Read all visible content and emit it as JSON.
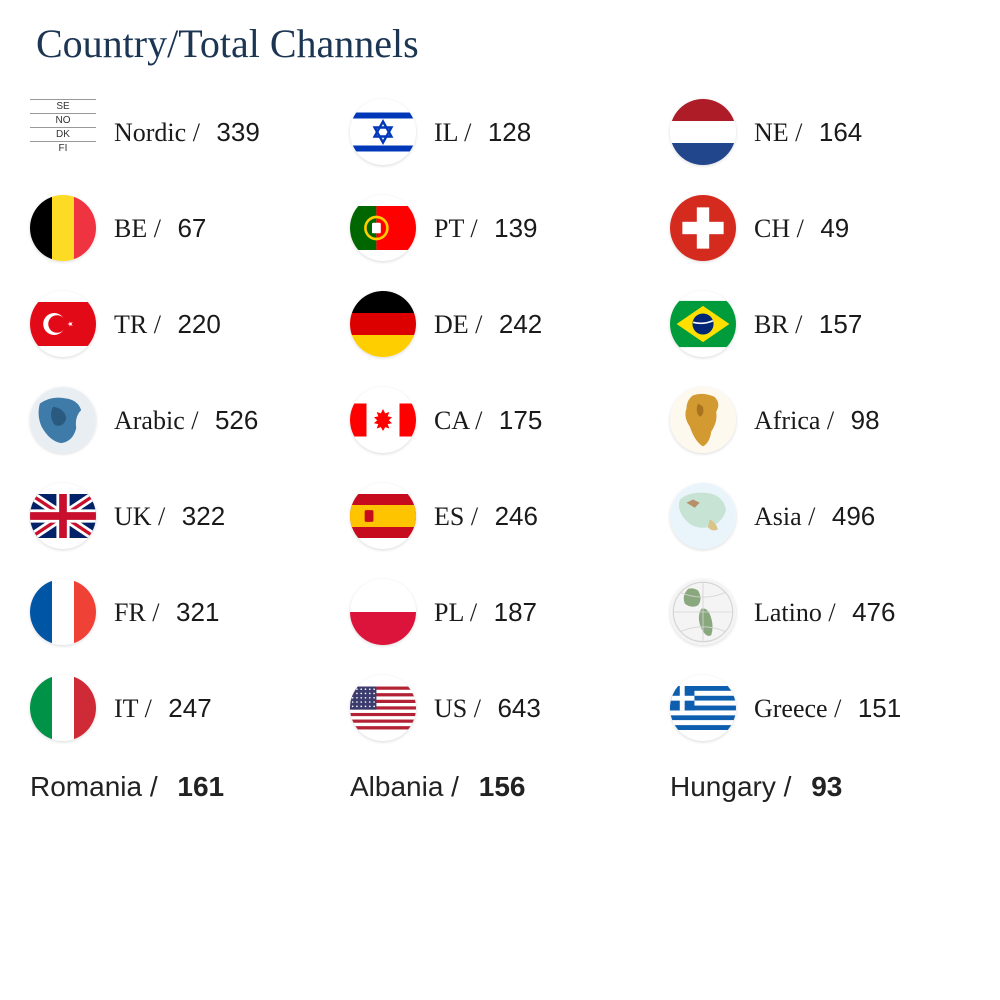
{
  "title": "Country/Total Channels",
  "title_color": "#1b3553",
  "title_fontsize": 40,
  "background_color": "#ffffff",
  "columns": [
    [
      {
        "name": "Nordic",
        "count": 339,
        "flag": "nordic"
      },
      {
        "name": "BE",
        "count": 67,
        "flag": "belgium"
      },
      {
        "name": "TR",
        "count": 220,
        "flag": "turkey"
      },
      {
        "name": "Arabic",
        "count": 526,
        "flag": "arabic-map"
      },
      {
        "name": "UK",
        "count": 322,
        "flag": "uk"
      },
      {
        "name": "FR",
        "count": 321,
        "flag": "france"
      },
      {
        "name": "IT",
        "count": 247,
        "flag": "italy"
      }
    ],
    [
      {
        "name": "IL",
        "count": 128,
        "flag": "israel"
      },
      {
        "name": "PT",
        "count": 139,
        "flag": "portugal"
      },
      {
        "name": "DE",
        "count": 242,
        "flag": "germany"
      },
      {
        "name": "CA",
        "count": 175,
        "flag": "canada"
      },
      {
        "name": "ES",
        "count": 246,
        "flag": "spain"
      },
      {
        "name": "PL",
        "count": 187,
        "flag": "poland"
      },
      {
        "name": "US",
        "count": 643,
        "flag": "usa"
      }
    ],
    [
      {
        "name": "NE",
        "count": 164,
        "flag": "netherlands"
      },
      {
        "name": "CH",
        "count": 49,
        "flag": "switzerland"
      },
      {
        "name": "BR",
        "count": 157,
        "flag": "brazil"
      },
      {
        "name": "Africa",
        "count": 98,
        "flag": "africa-map"
      },
      {
        "name": "Asia",
        "count": 496,
        "flag": "asia-map"
      },
      {
        "name": "Latino",
        "count": 476,
        "flag": "latino-map"
      },
      {
        "name": "Greece",
        "count": 151,
        "flag": "greece"
      }
    ]
  ],
  "bottom": [
    {
      "name": "Romania",
      "count": 161
    },
    {
      "name": "Albania",
      "count": 156
    },
    {
      "name": "Hungary",
      "count": 93
    }
  ],
  "nordic_labels": [
    "SE",
    "NO",
    "DK",
    "FI"
  ],
  "flag_colors": {
    "belgium": [
      "#000000",
      "#fdda24",
      "#ef3340"
    ],
    "france": [
      "#0055a4",
      "#ffffff",
      "#ef4135"
    ],
    "italy": [
      "#009246",
      "#ffffff",
      "#ce2b37"
    ],
    "germany": [
      "#000000",
      "#dd0000",
      "#ffce00"
    ],
    "netherlands": [
      "#ae1c28",
      "#ffffff",
      "#21468b"
    ],
    "poland": [
      "#ffffff",
      "#dc143c"
    ],
    "turkey_bg": "#e30a17",
    "switzerland_bg": "#d52b1e",
    "israel_blue": "#0038b8",
    "portugal": {
      "green": "#006600",
      "red": "#ff0000",
      "yellow": "#ffcc00"
    },
    "spain": {
      "red": "#c60b1e",
      "yellow": "#ffc400"
    },
    "uk": {
      "blue": "#012169",
      "red": "#c8102e",
      "white": "#ffffff"
    },
    "usa": {
      "red": "#b22234",
      "white": "#ffffff",
      "blue": "#3c3b6e"
    },
    "brazil": {
      "green": "#009c3b",
      "yellow": "#ffdf00",
      "blue": "#002776"
    },
    "canada": {
      "red": "#ff0000",
      "white": "#ffffff"
    },
    "greece": {
      "blue": "#0d5eaf",
      "white": "#ffffff"
    }
  }
}
